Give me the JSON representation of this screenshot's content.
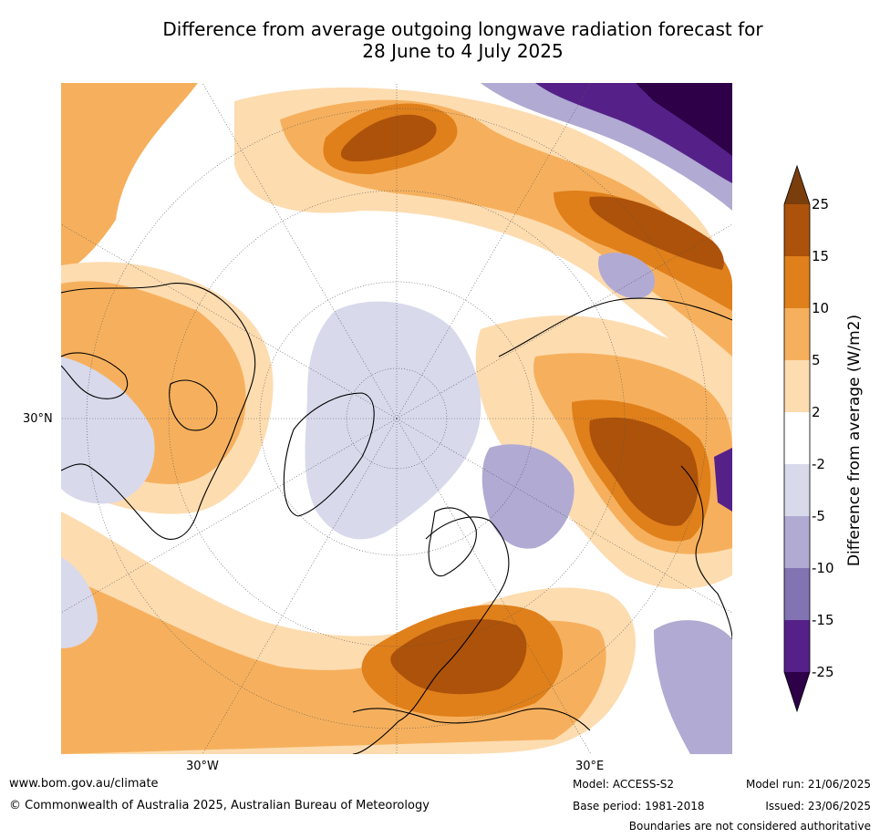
{
  "title": {
    "line1": "Difference from average outgoing longwave radiation forecast for",
    "line2": "28 June to 4 July 2025"
  },
  "map": {
    "labels": {
      "lat_30n": "30°N",
      "lon_30w": "30°W",
      "lon_30e": "30°E"
    }
  },
  "colorbar": {
    "title": "Difference from average (W/m2)",
    "ticks": [
      "25",
      "15",
      "10",
      "5",
      "2",
      "-2",
      "-5",
      "-10",
      "-15",
      "-25"
    ],
    "colors": {
      "gt25": "#7a3d0c",
      "15_25": "#ad520a",
      "10_15": "#e0801b",
      "5_10": "#f6b05d",
      "2_5": "#fddcb0",
      "neg2_2": "#ffffff",
      "neg5_neg2": "#d8d9eb",
      "neg10_neg5": "#b1aad3",
      "neg15_neg10": "#8273b2",
      "neg25_neg15": "#552189",
      "lt_neg25": "#2d0047"
    }
  },
  "footer": {
    "website": "www.bom.gov.au/climate",
    "copyright": "© Commonwealth of Australia 2025, Australian Bureau of Meteorology",
    "model": "Model: ACCESS-S2",
    "base_period": "Base period: 1981-2018",
    "model_run": "Model run: 21/06/2025",
    "issued": "Issued: 23/06/2025",
    "disclaimer": "Boundaries are not considered authoritative"
  }
}
